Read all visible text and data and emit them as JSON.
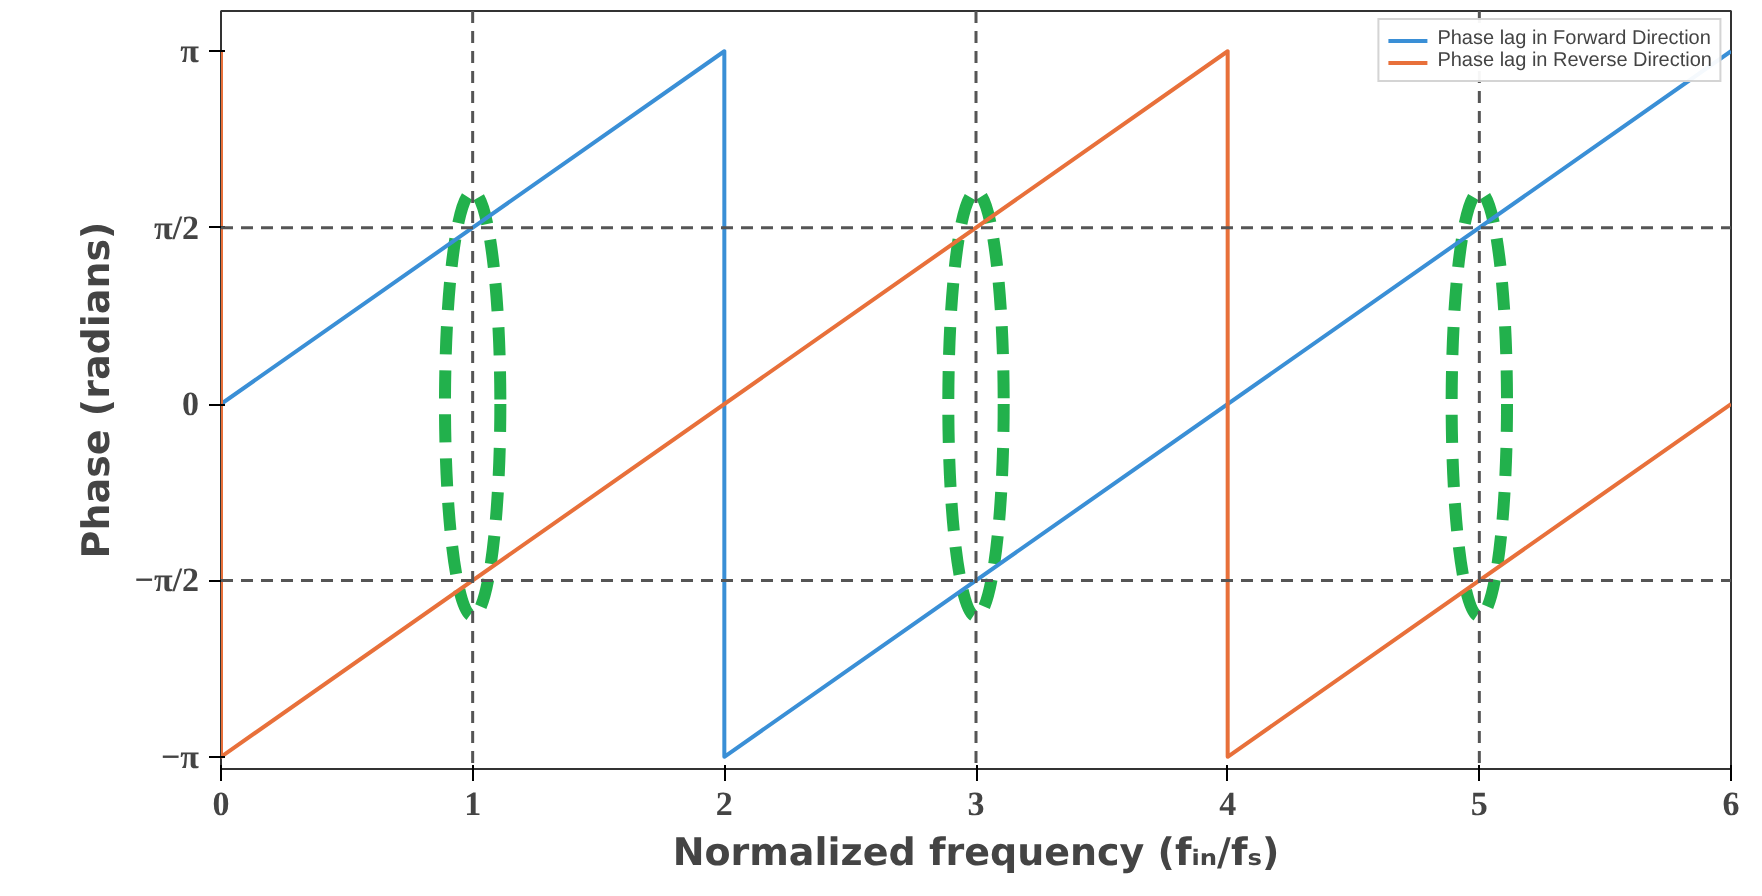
{
  "chart_data": {
    "type": "line",
    "xlabel": "Normalized frequency (fᵢₙ/fₛ)",
    "ylabel": "Phase (radians)",
    "xlim": [
      0,
      6
    ],
    "xticks": [
      0,
      1,
      2,
      3,
      4,
      5,
      6
    ],
    "ylim": [
      -3.25,
      3.5
    ],
    "yticks": [
      {
        "value": -3.1416,
        "label": "−π"
      },
      {
        "value": -1.5708,
        "label": "−π/2"
      },
      0,
      {
        "value": 1.5708,
        "label": "π/2"
      },
      {
        "value": 3.1416,
        "label": "π"
      }
    ],
    "series": [
      {
        "name": "Phase lag in Forward Direction",
        "color": "#3a8fd6",
        "x": [
          0,
          2,
          2,
          6
        ],
        "values": [
          0,
          3.1416,
          -3.1416,
          3.1416
        ]
      },
      {
        "name": "Phase lag in Reverse Direction",
        "color": "#e8703a",
        "x": [
          0,
          0,
          4,
          4,
          6
        ],
        "values": [
          3.1416,
          -3.1416,
          3.1416,
          -3.1416,
          0
        ]
      }
    ],
    "ref_lines": [
      {
        "axis": "y",
        "value": 1.5708,
        "color": "#555555",
        "line_style": "dashed"
      },
      {
        "axis": "y",
        "value": -1.5708,
        "color": "#555555",
        "line_style": "dashed"
      },
      {
        "axis": "x",
        "value": 1,
        "color": "#555555",
        "line_style": "dashed"
      },
      {
        "axis": "x",
        "value": 3,
        "color": "#555555",
        "line_style": "dashed"
      },
      {
        "axis": "x",
        "value": 5,
        "color": "#555555",
        "line_style": "dashed"
      }
    ],
    "legend": "top right",
    "grid": false
  }
}
